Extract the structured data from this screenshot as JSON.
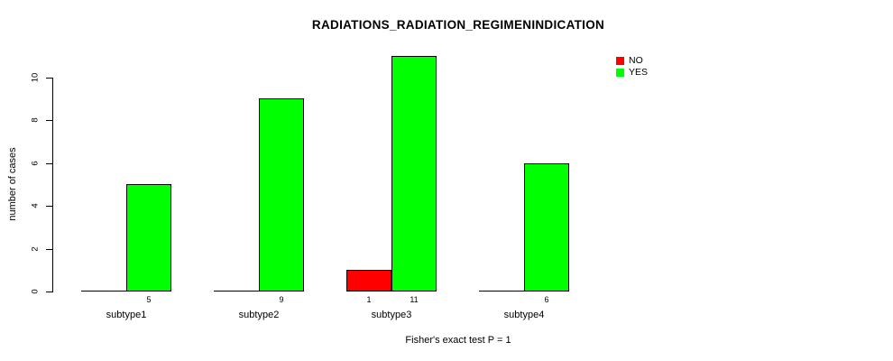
{
  "title": "RADIATIONS_RADIATION_REGIMENINDICATION",
  "caption": "Fisher's exact test P = 1",
  "y_axis": {
    "label": "number of cases"
  },
  "legend": {
    "items": [
      {
        "label": "NO",
        "color": "#ff0000"
      },
      {
        "label": "YES",
        "color": "#00ff00"
      }
    ]
  },
  "chart_data": {
    "type": "bar",
    "title": "RADIATIONS_RADIATION_REGIMENINDICATION",
    "categories": [
      "subtype1",
      "subtype2",
      "subtype3",
      "subtype4"
    ],
    "series": [
      {
        "name": "NO",
        "color": "#ff0000",
        "values": [
          0,
          0,
          1,
          0
        ]
      },
      {
        "name": "YES",
        "color": "#00ff00",
        "values": [
          5,
          9,
          11,
          6
        ]
      }
    ],
    "xlabel": "",
    "ylabel": "number of cases",
    "ylim": [
      0,
      11
    ],
    "yticks": [
      0,
      2,
      4,
      6,
      8,
      10
    ],
    "grid": false,
    "bar_value_labels": true,
    "legend_position": "top-right",
    "annotation": "Fisher's exact test P = 1"
  }
}
